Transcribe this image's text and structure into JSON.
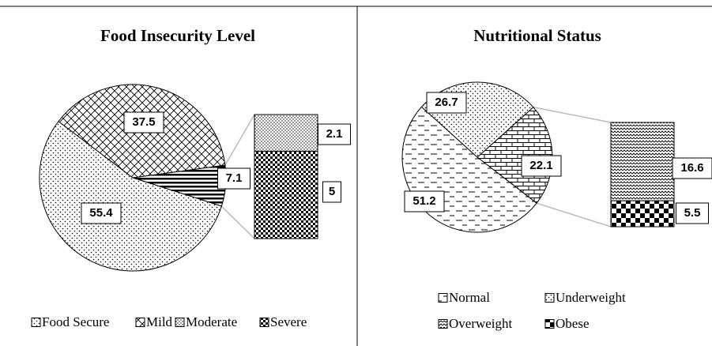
{
  "chart_data": [
    {
      "type": "bar_of_pie",
      "title": "Food Insecurity Level",
      "pie": {
        "categories": [
          "Food Secure",
          "Mild"
        ],
        "values": [
          55.4,
          37.5
        ],
        "other_value": 7.1
      },
      "bar": {
        "categories": [
          "Moderate",
          "Severe"
        ],
        "values": [
          2.1,
          5
        ]
      }
    },
    {
      "type": "bar_of_pie",
      "title": "Nutritional Status",
      "pie": {
        "categories": [
          "Normal",
          "Underweight"
        ],
        "values": [
          51.2,
          26.7
        ],
        "other_value": 22.1
      },
      "bar": {
        "categories": [
          "Overweight",
          "Obese"
        ],
        "values": [
          16.6,
          5.5
        ]
      }
    }
  ]
}
